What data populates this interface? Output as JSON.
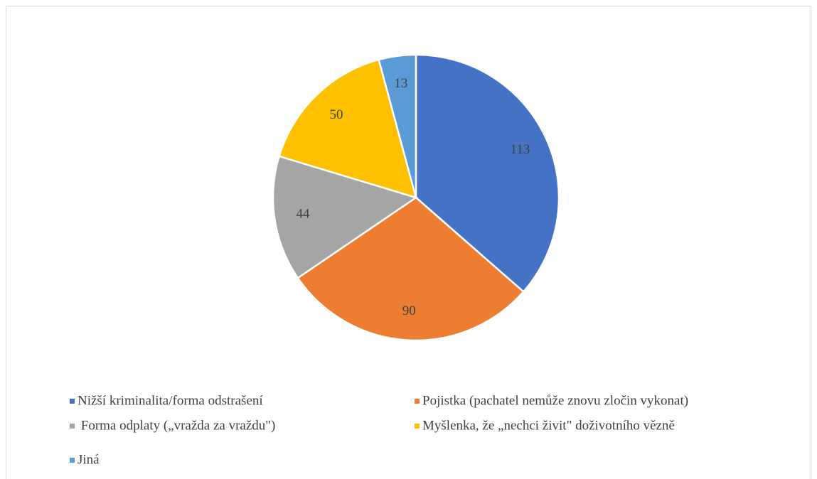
{
  "chart_data": {
    "type": "pie",
    "categories": [
      "Nižší kriminalita/forma odstrašení",
      "Pojistka (pachatel nemůže znovu zločin vykonat)",
      " Forma odplaty („vražda za vraždu\")",
      "Myšlenka, že „nechci živit\" doživotního vězně",
      "Jiná"
    ],
    "values": [
      113,
      90,
      44,
      50,
      13
    ],
    "colors": [
      "#4472c4",
      "#ed7d31",
      "#a5a5a5",
      "#ffc000",
      "#5b9bd5"
    ],
    "legend": "bottom"
  }
}
